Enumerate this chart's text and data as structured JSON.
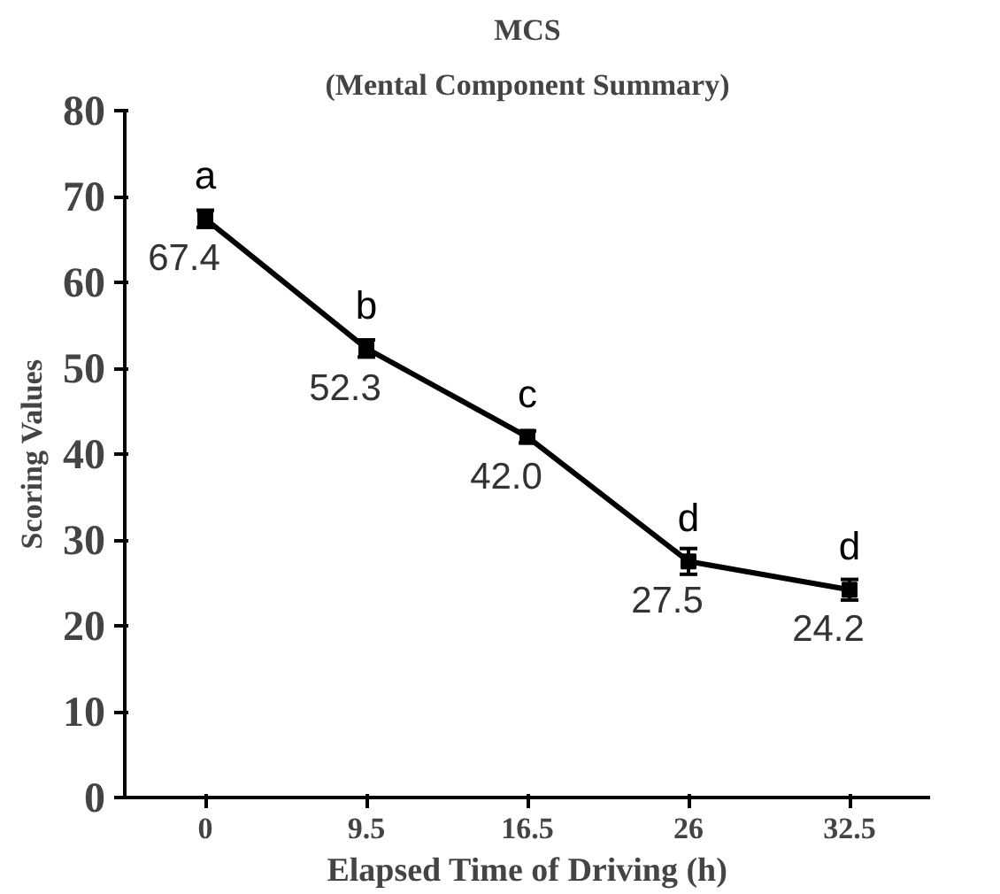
{
  "chart_data": {
    "type": "line",
    "title": "MCS",
    "subtitle": "(Mental Component Summary)",
    "xlabel": "Elapsed Time of Driving (h)",
    "ylabel": "Scoring Values",
    "categories": [
      "0",
      "9.5",
      "16.5",
      "26",
      "32.5"
    ],
    "series": [
      {
        "color": "#000000",
        "values": [
          67.4,
          52.3,
          42.0,
          27.5,
          24.2
        ],
        "errors": [
          1.0,
          1.0,
          0.7,
          1.5,
          1.2
        ]
      }
    ],
    "value_labels": [
      "67.4",
      "52.3",
      "42.0",
      "27.5",
      "24.2"
    ],
    "annotations": [
      {
        "text": "a",
        "x": "0",
        "y": 67.4
      },
      {
        "text": "b",
        "x": "9.5",
        "y": 52.3
      },
      {
        "text": "c",
        "x": "16.5",
        "y": 42.0
      },
      {
        "text": "d",
        "x": "26",
        "y": 27.5
      },
      {
        "text": "d",
        "x": "32.5",
        "y": 24.2
      }
    ],
    "ylim": [
      0,
      80
    ],
    "yticks": [
      0,
      10,
      20,
      30,
      40,
      50,
      60,
      70,
      80
    ],
    "marker": "square",
    "line_style": "solid",
    "grid": false
  }
}
